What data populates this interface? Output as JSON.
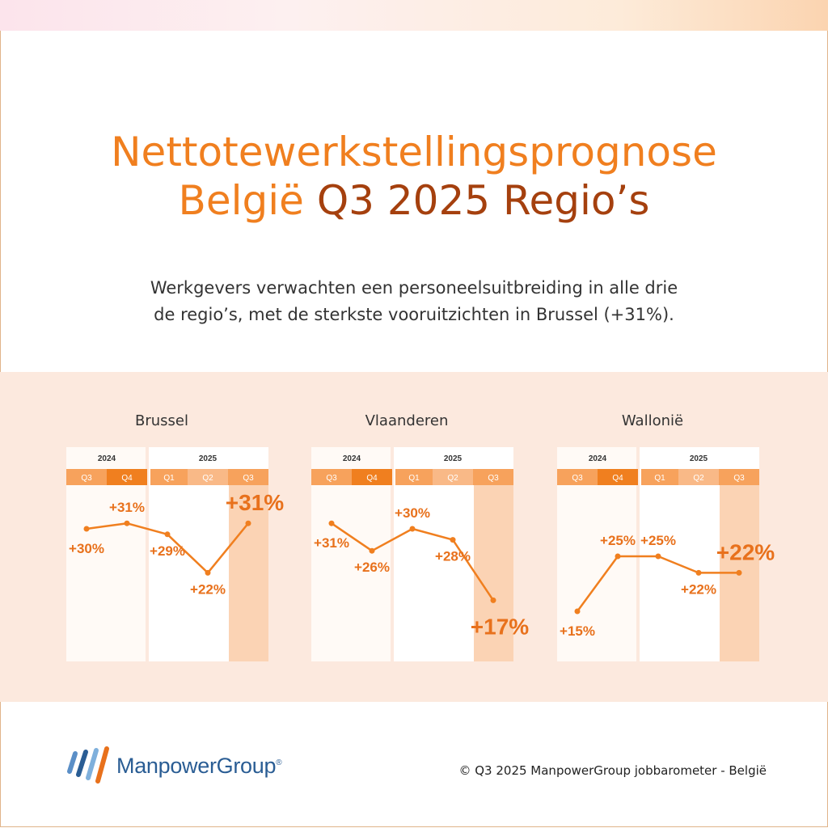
{
  "title": {
    "line1": "Nettotewerkstellingsprognose",
    "line2_a": "België",
    "line2_b": "Q3 2025 Regio’s"
  },
  "subtitle": {
    "line1": "Werkgevers verwachten een personeelsuitbreiding in alle drie",
    "line2": "de regio’s, met de sterkste vooruitzichten in Brussel (+31%)."
  },
  "chart_data": [
    {
      "type": "line",
      "title": "Brussel",
      "years": [
        "2024",
        "2025"
      ],
      "categories": [
        "Q3",
        "Q4",
        "Q1",
        "Q2",
        "Q3"
      ],
      "values": [
        30,
        31,
        29,
        22,
        31
      ],
      "labels": [
        "+30%",
        "+31%",
        "+29%",
        "+22%",
        "+31%"
      ]
    },
    {
      "type": "line",
      "title": "Vlaanderen",
      "years": [
        "2024",
        "2025"
      ],
      "categories": [
        "Q3",
        "Q4",
        "Q1",
        "Q2",
        "Q3"
      ],
      "values": [
        31,
        26,
        30,
        28,
        17
      ],
      "labels": [
        "+31%",
        "+26%",
        "+30%",
        "+28%",
        "+17%"
      ]
    },
    {
      "type": "line",
      "title": "Wallonië",
      "years": [
        "2024",
        "2025"
      ],
      "categories": [
        "Q3",
        "Q4",
        "Q1",
        "Q2",
        "Q3"
      ],
      "values": [
        15,
        25,
        25,
        22,
        22
      ],
      "labels": [
        "+15%",
        "+25%",
        "+25%",
        "+22%",
        "+22%"
      ]
    }
  ],
  "colors": {
    "accent": "#f07f1f",
    "label": "#e8711c",
    "dark_accent": "#a5400e",
    "band": "#fce9de",
    "highlight": "#fbd3b4"
  },
  "footer": {
    "logo_text": "ManpowerGroup",
    "logo_mark": "®",
    "copyright": "© Q3 2025 ManpowerGroup jobbarometer - België"
  }
}
